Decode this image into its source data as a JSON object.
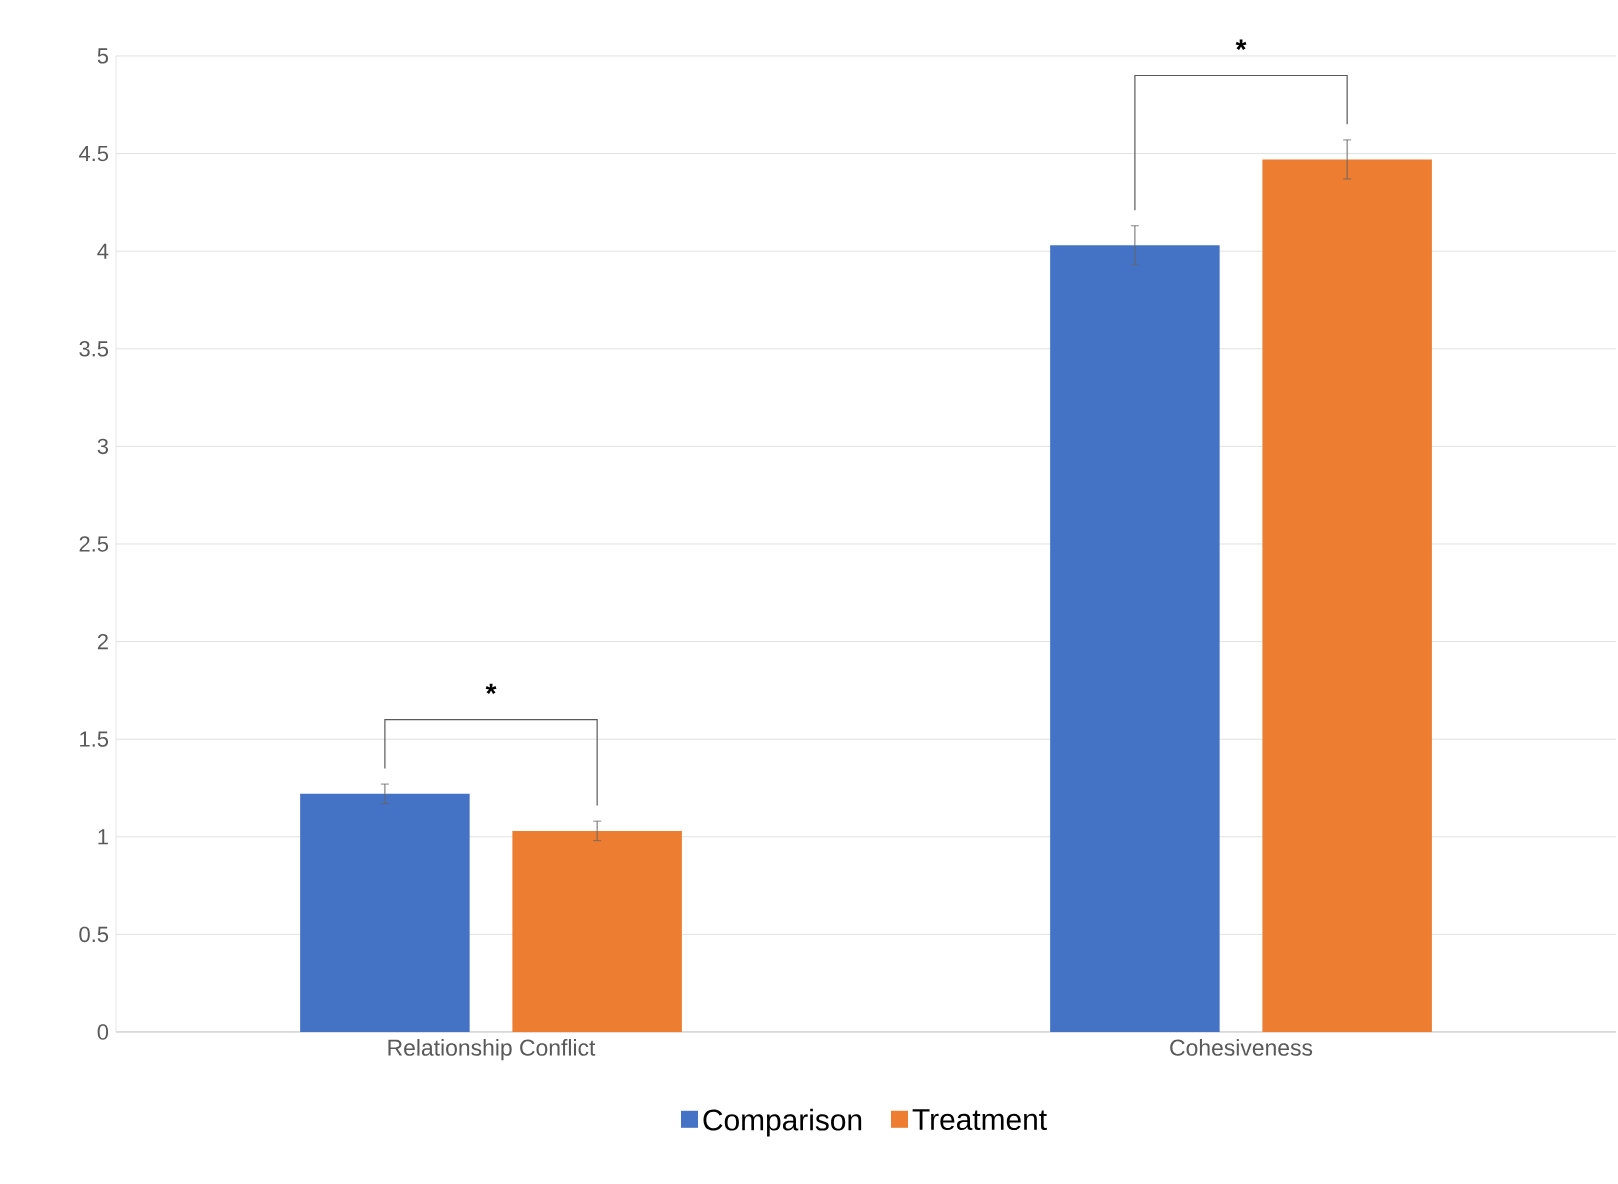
{
  "chart_data": {
    "type": "bar",
    "categories": [
      "Relationship Conflict",
      "Cohesiveness"
    ],
    "series": [
      {
        "name": "Comparison",
        "color": "#4472c4",
        "values": [
          1.22,
          4.03
        ],
        "errors": [
          0.05,
          0.1
        ]
      },
      {
        "name": "Treatment",
        "color": "#ed7d31",
        "values": [
          1.03,
          4.47
        ],
        "errors": [
          0.05,
          0.1
        ]
      }
    ],
    "ylim": [
      0,
      5
    ],
    "yticks": [
      0,
      0.5,
      1,
      1.5,
      2,
      2.5,
      3,
      3.5,
      4,
      4.5,
      5
    ],
    "grid": "y",
    "legend": "bottom",
    "annotations": [
      "*",
      "*"
    ]
  }
}
